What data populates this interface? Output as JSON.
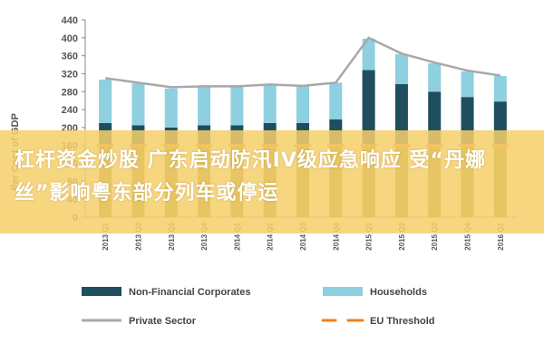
{
  "chart_data": {
    "type": "bar",
    "ylabel": "Per Cent of GDP",
    "ylim": [
      0,
      440
    ],
    "yticks": [
      0,
      40,
      80,
      120,
      160,
      200,
      240,
      280,
      320,
      360,
      400,
      440
    ],
    "grid": false,
    "legend_position": "bottom",
    "categories": [
      "2013 Q1",
      "2013 Q2",
      "2013 Q3",
      "2013 Q4",
      "2014 Q1",
      "2014 Q2",
      "2014 Q3",
      "2014 Q4",
      "2015 Q1",
      "2015 Q2",
      "2015 Q3",
      "2015 Q4",
      "2016 Q1"
    ],
    "series": [
      {
        "name": "Non-Financial Corporates",
        "kind": "bar",
        "color": "#1f4e5f",
        "values": [
          210,
          205,
          200,
          205,
          205,
          210,
          210,
          218,
          328,
          297,
          280,
          268,
          258
        ]
      },
      {
        "name": "Households",
        "kind": "bar",
        "color": "#8ecfe0",
        "values": [
          97,
          93,
          87,
          86,
          87,
          86,
          82,
          82,
          70,
          67,
          63,
          57,
          57
        ]
      },
      {
        "name": "Private Sector",
        "kind": "line",
        "color": "#a8a8a8",
        "values": [
          310,
          300,
          290,
          292,
          292,
          296,
          293,
          300,
          400,
          365,
          345,
          327,
          316
        ]
      },
      {
        "name": "EU Threshold",
        "kind": "dash",
        "color": "#f07f1d",
        "values": [
          160,
          160,
          160,
          160,
          160,
          160,
          160,
          160,
          160,
          160,
          160,
          160,
          160
        ]
      }
    ],
    "colors": {
      "lower_band": "#8a8a2a",
      "axis": "#888888",
      "tick_text": "#555555"
    }
  },
  "overlay": {
    "text": "杠杆资金炒股 广东启动防汛IV级应急响应 受“丹娜丝”影响粤东部分列车或停运",
    "band_color": "#f6cf6b",
    "text_color": "#ffffff"
  }
}
